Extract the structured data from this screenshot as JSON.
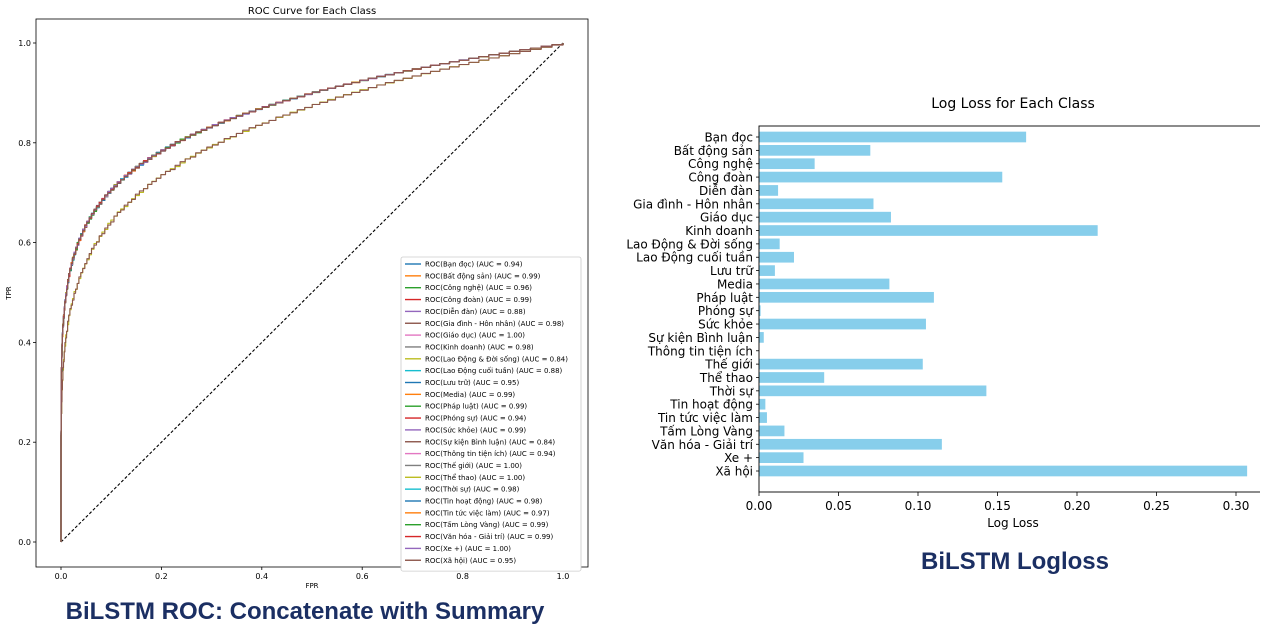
{
  "captions": {
    "roc": "BiLSTM ROC: Concatenate with Summary",
    "logloss": "BiLSTM Logloss"
  },
  "chart_data": [
    {
      "type": "line",
      "title": "ROC Curve for Each Class",
      "xlabel": "FPR",
      "ylabel": "TPR",
      "xlim": [
        0,
        1
      ],
      "ylim": [
        0,
        1
      ],
      "xticks": [
        "0.0",
        "0.2",
        "0.4",
        "0.6",
        "0.8",
        "1.0"
      ],
      "yticks": [
        "0.0",
        "0.2",
        "0.4",
        "0.6",
        "0.8",
        "1.0"
      ],
      "legend_position": "lower-right",
      "grid": false,
      "diagonal": true,
      "series": [
        {
          "name": "ROC(Bạn đọc) (AUC = 0.94)",
          "auc": 0.94,
          "color": "#1f77b4"
        },
        {
          "name": "ROC(Bất động sản) (AUC = 0.99)",
          "auc": 0.99,
          "color": "#ff7f0e"
        },
        {
          "name": "ROC(Công nghệ) (AUC = 0.96)",
          "auc": 0.96,
          "color": "#2ca02c"
        },
        {
          "name": "ROC(Công đoàn) (AUC = 0.99)",
          "auc": 0.99,
          "color": "#d62728"
        },
        {
          "name": "ROC(Diễn đàn) (AUC = 0.88)",
          "auc": 0.88,
          "color": "#9467bd"
        },
        {
          "name": "ROC(Gia đình - Hôn nhân) (AUC = 0.98)",
          "auc": 0.98,
          "color": "#8c564b"
        },
        {
          "name": "ROC(Giáo dục) (AUC = 1.00)",
          "auc": 1.0,
          "color": "#e377c2"
        },
        {
          "name": "ROC(Kinh doanh) (AUC = 0.98)",
          "auc": 0.98,
          "color": "#7f7f7f"
        },
        {
          "name": "ROC(Lao Động & Đời sống) (AUC = 0.84)",
          "auc": 0.84,
          "color": "#bcbd22"
        },
        {
          "name": "ROC(Lao Động cuối tuần) (AUC = 0.88)",
          "auc": 0.88,
          "color": "#17becf"
        },
        {
          "name": "ROC(Lưu trữ) (AUC = 0.95)",
          "auc": 0.95,
          "color": "#1f77b4"
        },
        {
          "name": "ROC(Media) (AUC = 0.99)",
          "auc": 0.99,
          "color": "#ff7f0e"
        },
        {
          "name": "ROC(Pháp luật) (AUC = 0.99)",
          "auc": 0.99,
          "color": "#2ca02c"
        },
        {
          "name": "ROC(Phóng sự) (AUC = 0.94)",
          "auc": 0.94,
          "color": "#d62728"
        },
        {
          "name": "ROC(Sức khỏe) (AUC = 0.99)",
          "auc": 0.99,
          "color": "#9467bd"
        },
        {
          "name": "ROC(Sự kiện Bình luận) (AUC = 0.84)",
          "auc": 0.84,
          "color": "#8c564b"
        },
        {
          "name": "ROC(Thông tin tiện ích) (AUC = 0.94)",
          "auc": 0.94,
          "color": "#e377c2"
        },
        {
          "name": "ROC(Thế giới) (AUC = 1.00)",
          "auc": 1.0,
          "color": "#7f7f7f"
        },
        {
          "name": "ROC(Thể thao) (AUC = 1.00)",
          "auc": 1.0,
          "color": "#bcbd22"
        },
        {
          "name": "ROC(Thời sự) (AUC = 0.98)",
          "auc": 0.98,
          "color": "#17becf"
        },
        {
          "name": "ROC(Tin hoạt động) (AUC = 0.98)",
          "auc": 0.98,
          "color": "#1f77b4"
        },
        {
          "name": "ROC(Tin tức việc làm) (AUC = 0.97)",
          "auc": 0.97,
          "color": "#ff7f0e"
        },
        {
          "name": "ROC(Tấm Lòng Vàng) (AUC = 0.99)",
          "auc": 0.99,
          "color": "#2ca02c"
        },
        {
          "name": "ROC(Văn hóa - Giải trí) (AUC = 0.99)",
          "auc": 0.99,
          "color": "#d62728"
        },
        {
          "name": "ROC(Xe +) (AUC = 1.00)",
          "auc": 1.0,
          "color": "#9467bd"
        },
        {
          "name": "ROC(Xã hội) (AUC = 0.95)",
          "auc": 0.95,
          "color": "#8c564b"
        }
      ]
    },
    {
      "type": "bar",
      "orientation": "horizontal",
      "title": "Log Loss for Each Class",
      "xlabel": "Log Loss",
      "ylabel": "",
      "xlim": [
        0,
        0.31
      ],
      "xticks": [
        "0.00",
        "0.05",
        "0.10",
        "0.15",
        "0.20",
        "0.25",
        "0.30"
      ],
      "bar_color": "#87ceeb",
      "categories": [
        "Bạn đọc",
        "Bất động sản",
        "Công nghệ",
        "Công đoàn",
        "Diễn đàn",
        "Gia đình - Hôn nhân",
        "Giáo dục",
        "Kinh doanh",
        "Lao Động & Đời sống",
        "Lao Động cuối tuần",
        "Lưu trữ",
        "Media",
        "Pháp luật",
        "Phóng sự",
        "Sức khỏe",
        "Sự kiện Bình luận",
        "Thông tin tiện ích",
        "Thế giới",
        "Thể thao",
        "Thời sự",
        "Tin hoạt động",
        "Tin tức việc làm",
        "Tấm Lòng Vàng",
        "Văn hóa - Giải trí",
        "Xe +",
        "Xã hội"
      ],
      "values": [
        0.168,
        0.07,
        0.035,
        0.153,
        0.012,
        0.072,
        0.083,
        0.213,
        0.013,
        0.022,
        0.01,
        0.082,
        0.11,
        0.001,
        0.105,
        0.003,
        0.0,
        0.103,
        0.041,
        0.143,
        0.004,
        0.005,
        0.016,
        0.115,
        0.028,
        0.307
      ]
    }
  ]
}
